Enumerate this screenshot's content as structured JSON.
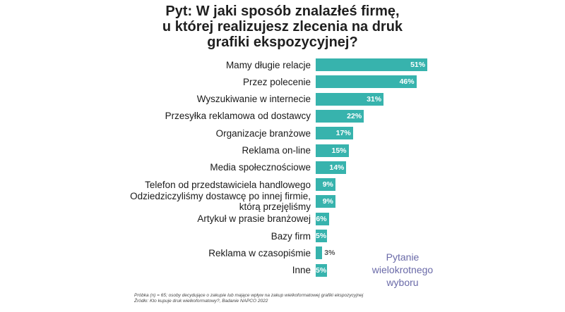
{
  "chart_data": {
    "type": "bar",
    "orientation": "horizontal",
    "title_lines": [
      "Pyt: W jaki sposób znalazłeś firmę,",
      "u której realizujesz zlecenia na druk",
      "grafiki ekspozycyjnej?"
    ],
    "categories": [
      [
        "Mamy długie relacje"
      ],
      [
        "Przez polecenie"
      ],
      [
        "Wyszukiwanie w internecie"
      ],
      [
        "Przesyłka reklamowa od dostawcy"
      ],
      [
        "Organizacje branżowe"
      ],
      [
        "Reklama on-line"
      ],
      [
        "Media społecznościowe"
      ],
      [
        "Telefon od przedstawiciela handlowego"
      ],
      [
        "Odziedziczyliśmy dostawcę po innej firmie,",
        "którą przejęliśmy"
      ],
      [
        "Artykuł w prasie branżowej"
      ],
      [
        "Bazy firm"
      ],
      [
        "Reklama w czasopiśmie"
      ],
      [
        "Inne"
      ]
    ],
    "values": [
      51,
      46,
      31,
      22,
      17,
      15,
      14,
      9,
      9,
      6,
      5,
      3,
      5
    ],
    "value_labels": [
      "51%",
      "46%",
      "31%",
      "22%",
      "17%",
      "15%",
      "14%",
      "9%",
      "9%",
      "6%",
      "5%",
      "3%",
      "5%"
    ],
    "bar_color": "#37b3ad",
    "grid": false,
    "legend": "none"
  },
  "note_lines": [
    "Pytanie",
    "wielokrotnego",
    "wyboru"
  ],
  "footer_lines": [
    "Próbka (n) = 65; osoby decydujące o zakupie lub mające wpływ na zakup wielkoformatowej grafiki ekspozycyjnej",
    "Źródło: Kto kupuje druk wielkoformatowy?, Badanie NAPCO 2022"
  ]
}
